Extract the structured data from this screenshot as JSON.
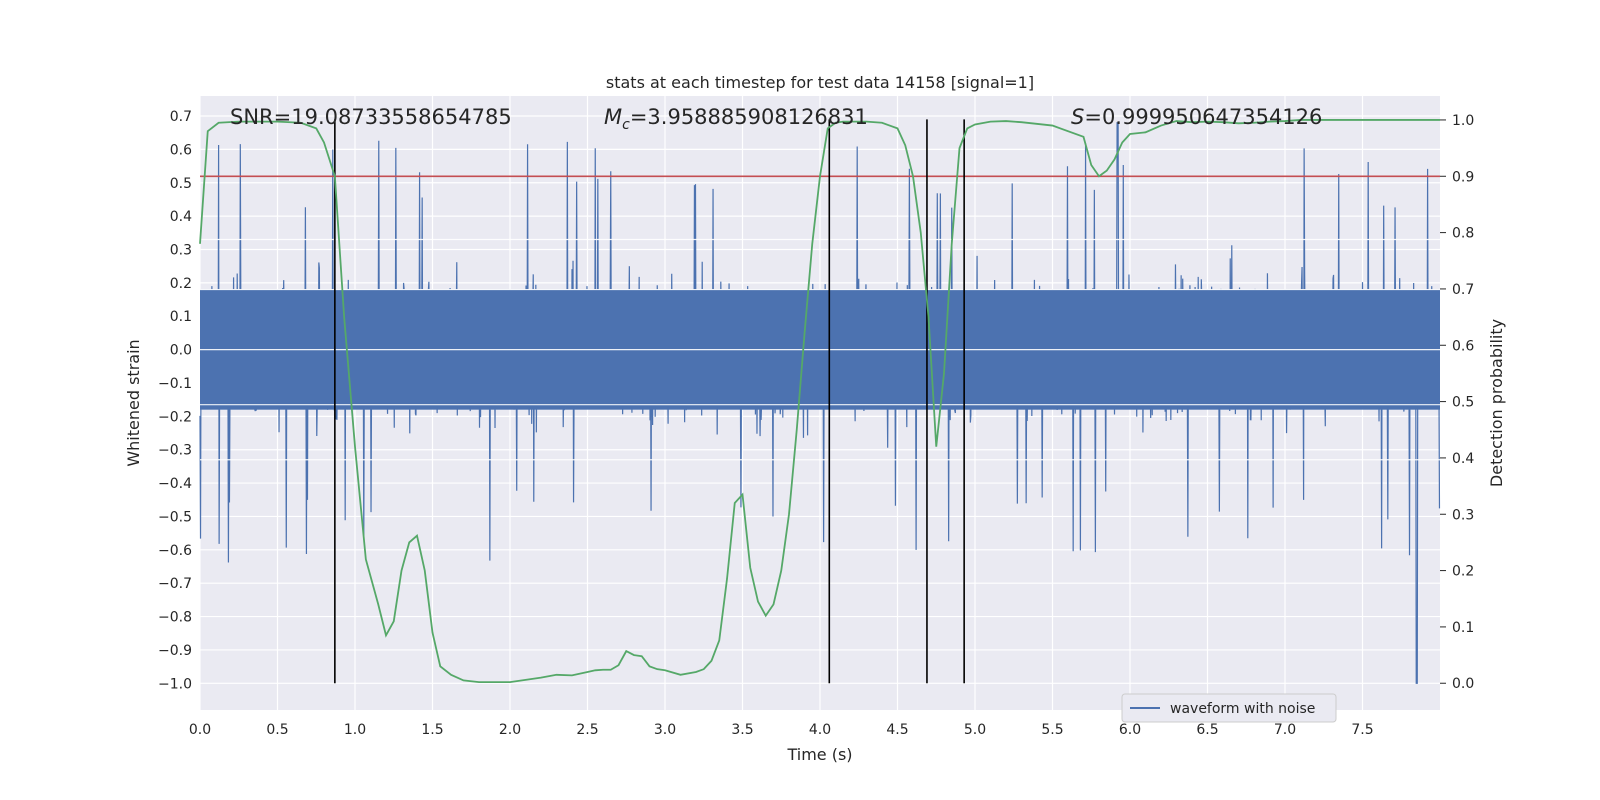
{
  "chart_data": {
    "type": "line",
    "title": "stats at each timestep for test data 14158 [signal=1]",
    "xlabel": "Time (s)",
    "ylabel": "Whitened strain",
    "ylabel_right": "Detection probability",
    "xlim": [
      0,
      8
    ],
    "ylim": [
      -1.08,
      0.76
    ],
    "ylim_right": [
      -0.0475,
      1.0425
    ],
    "x_ticks": [
      0.0,
      0.5,
      1.0,
      1.5,
      2.0,
      2.5,
      3.0,
      3.5,
      4.0,
      4.5,
      5.0,
      5.5,
      6.0,
      6.5,
      7.0,
      7.5
    ],
    "x_tick_labels": [
      "0.0",
      "0.5",
      "1.0",
      "1.5",
      "2.0",
      "2.5",
      "3.0",
      "3.5",
      "4.0",
      "4.5",
      "5.0",
      "5.5",
      "6.0",
      "6.5",
      "7.0",
      "7.5"
    ],
    "y_ticks": [
      0.7,
      0.6,
      0.5,
      0.4,
      0.3,
      0.2,
      0.1,
      0.0,
      -0.1,
      -0.2,
      -0.3,
      -0.4,
      -0.5,
      -0.6,
      -0.7,
      -0.8,
      -0.9,
      -1.0
    ],
    "y_tick_labels": [
      "0.7",
      "0.6",
      "0.5",
      "0.4",
      "0.3",
      "0.2",
      "0.1",
      "0.0",
      "−0.1",
      "−0.2",
      "−0.3",
      "−0.4",
      "−0.5",
      "−0.6",
      "−0.7",
      "−0.8",
      "−0.9",
      "−1.0"
    ],
    "y_right_ticks": [
      1.0,
      0.9,
      0.8,
      0.7,
      0.6,
      0.5,
      0.4,
      0.3,
      0.2,
      0.1,
      0.0
    ],
    "y_right_tick_labels": [
      "1.0",
      "0.9",
      "0.8",
      "0.7",
      "0.6",
      "0.5",
      "0.4",
      "0.3",
      "0.2",
      "0.1",
      "0.0"
    ],
    "annotations": {
      "snr": "SNR=19.08733558654785",
      "mc_symbol": "M",
      "mc_sub": "c",
      "mc_value": "=3.958885908126831",
      "s_symbol": "S",
      "s_value": "=0.999950647354126"
    },
    "threshold": {
      "value": 0.9,
      "axis": "right",
      "color": "#c44e52"
    },
    "crossings": [
      0.87,
      4.06,
      4.69,
      4.93
    ],
    "crossing_range": [
      -1.0,
      0.69
    ],
    "legend": {
      "label": "waveform with noise",
      "location": "lower-right"
    },
    "series": [
      {
        "name": "waveform with noise",
        "axis": "left",
        "color": "#4c72b0",
        "style": "dense noise",
        "duration": 8.0,
        "envelope": 0.3,
        "peak_min": -1.0,
        "peak_min_t": 7.85,
        "peak_max": 0.68,
        "peak_max_t": 5.92
      },
      {
        "name": "detection probability",
        "axis": "right",
        "color": "#55a868",
        "x": [
          0.0,
          0.05,
          0.12,
          0.25,
          0.5,
          0.65,
          0.75,
          0.8,
          0.87,
          0.93,
          1.0,
          1.07,
          1.15,
          1.2,
          1.25,
          1.3,
          1.35,
          1.4,
          1.45,
          1.5,
          1.55,
          1.62,
          1.7,
          1.8,
          2.0,
          2.2,
          2.3,
          2.4,
          2.5,
          2.55,
          2.6,
          2.65,
          2.7,
          2.75,
          2.8,
          2.85,
          2.9,
          2.95,
          3.0,
          3.1,
          3.2,
          3.25,
          3.3,
          3.35,
          3.4,
          3.45,
          3.5,
          3.55,
          3.6,
          3.65,
          3.7,
          3.75,
          3.8,
          3.85,
          3.9,
          3.95,
          4.0,
          4.05,
          4.1,
          4.15,
          4.2,
          4.3,
          4.4,
          4.5,
          4.55,
          4.6,
          4.65,
          4.7,
          4.75,
          4.8,
          4.85,
          4.9,
          4.95,
          5.0,
          5.1,
          5.2,
          5.3,
          5.5,
          5.7,
          5.75,
          5.8,
          5.85,
          5.9,
          5.95,
          6.0,
          6.1,
          6.2,
          6.3,
          6.4,
          6.5,
          6.6,
          6.7,
          6.8,
          6.9,
          7.0,
          7.1,
          7.2,
          7.4,
          7.6,
          7.8,
          8.0
        ],
        "values": [
          0.78,
          0.98,
          0.995,
          0.997,
          0.997,
          0.995,
          0.985,
          0.96,
          0.9,
          0.65,
          0.42,
          0.22,
          0.14,
          0.085,
          0.11,
          0.2,
          0.25,
          0.262,
          0.2,
          0.09,
          0.03,
          0.015,
          0.005,
          0.002,
          0.002,
          0.01,
          0.015,
          0.014,
          0.02,
          0.023,
          0.024,
          0.024,
          0.032,
          0.057,
          0.05,
          0.048,
          0.03,
          0.025,
          0.023,
          0.015,
          0.02,
          0.025,
          0.04,
          0.076,
          0.185,
          0.32,
          0.335,
          0.205,
          0.145,
          0.12,
          0.14,
          0.2,
          0.3,
          0.45,
          0.62,
          0.78,
          0.9,
          0.985,
          0.995,
          0.997,
          0.997,
          0.997,
          0.995,
          0.985,
          0.955,
          0.9,
          0.8,
          0.65,
          0.42,
          0.55,
          0.78,
          0.95,
          0.985,
          0.992,
          0.997,
          0.998,
          0.996,
          0.99,
          0.97,
          0.92,
          0.9,
          0.91,
          0.93,
          0.96,
          0.975,
          0.978,
          0.99,
          0.998,
          0.996,
          0.997,
          0.996,
          0.994,
          0.995,
          0.997,
          0.998,
          1.0,
          1.0,
          1.0,
          1.0,
          1.0,
          1.0
        ]
      }
    ]
  }
}
